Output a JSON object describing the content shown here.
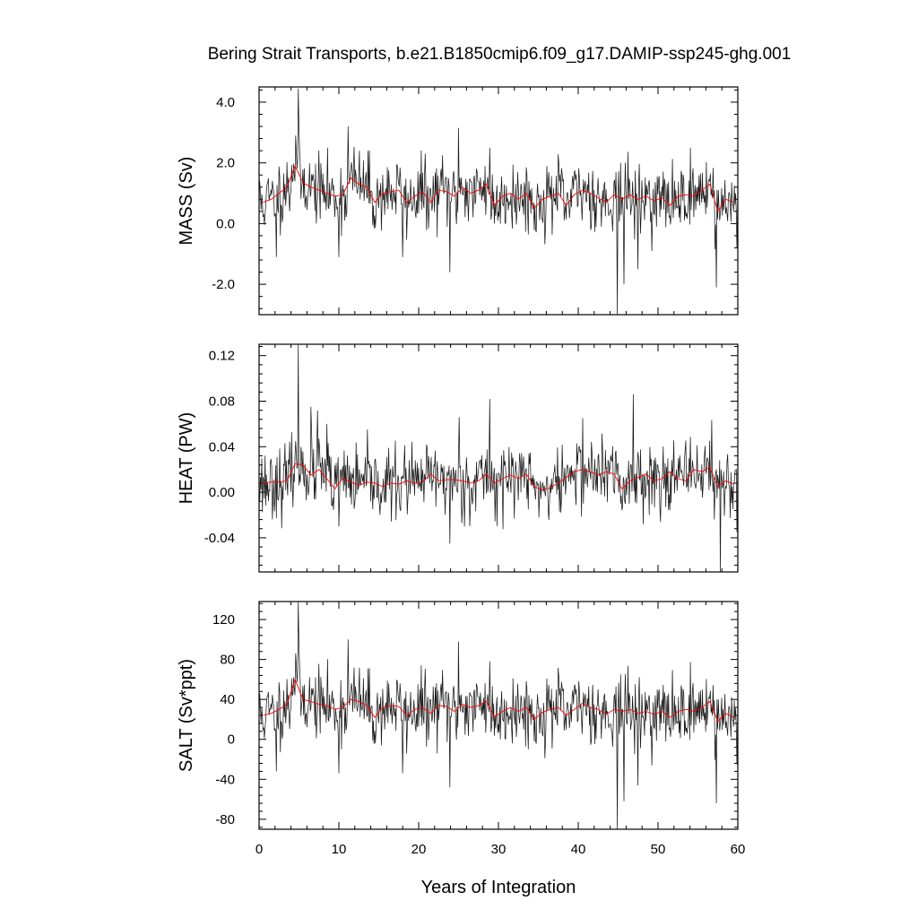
{
  "figure": {
    "title": "Bering Strait Transports, b.e21.B1850cmip6.f09_g17.DAMIP-ssp245-ghg.001",
    "xlabel": "Years of Integration"
  },
  "colors": {
    "monthly_series": "#1a1a1a",
    "running_mean": "#ff0000",
    "axes": "#000000"
  },
  "chart_data": [
    {
      "type": "line",
      "ylabel": "MASS (Sv)",
      "xlim": [
        0,
        60
      ],
      "ylim": [
        -3.0,
        4.5
      ],
      "x_ticks": [
        0,
        10,
        20,
        30,
        40,
        50,
        60
      ],
      "y_ticks": [
        -2.0,
        0.0,
        2.0,
        4.0
      ],
      "y_tick_labels": [
        "-2.0",
        "0.0",
        "2.0",
        "4.0"
      ],
      "grid": false,
      "series": [
        {
          "style": "monthly",
          "x_start": 0,
          "x_step": 0.0833,
          "base_mean": 0.9,
          "noise_sd": 0.55,
          "seed": 11,
          "extremes": [
            [
              4.9,
              4.45
            ],
            [
              5.0,
              3.1
            ],
            [
              4.6,
              2.9
            ],
            [
              11.2,
              3.2
            ],
            [
              25.0,
              3.15
            ],
            [
              28.9,
              2.5
            ],
            [
              2.2,
              -1.1
            ],
            [
              10.0,
              -1.1
            ],
            [
              18.0,
              -1.1
            ],
            [
              23.9,
              -1.6
            ],
            [
              44.9,
              -3.0
            ],
            [
              45.7,
              -2.0
            ],
            [
              47.5,
              -1.5
            ],
            [
              57.3,
              -2.1
            ],
            [
              59.9,
              -0.8
            ]
          ]
        },
        {
          "style": "annual_mean",
          "x": [
            0.5,
            1.5,
            2.5,
            3.5,
            4.5,
            5.5,
            6.5,
            7.5,
            8.5,
            9.5,
            10.5,
            11.5,
            12.5,
            13.5,
            14.5,
            15.5,
            16.5,
            17.5,
            18.5,
            19.5,
            20.5,
            21.5,
            22.5,
            23.5,
            24.5,
            25.5,
            26.5,
            27.5,
            28.5,
            29.5,
            30.5,
            31.5,
            32.5,
            33.5,
            34.5,
            35.5,
            36.5,
            37.5,
            38.5,
            39.5,
            40.5,
            41.5,
            42.5,
            43.5,
            44.5,
            45.5,
            46.5,
            47.5,
            48.5,
            49.5,
            50.5,
            51.5,
            52.5,
            53.5,
            54.5,
            55.5,
            56.5,
            57.5,
            58.5,
            59.5
          ],
          "values": [
            0.7,
            0.8,
            1.0,
            1.2,
            1.9,
            1.35,
            1.2,
            1.1,
            1.0,
            0.9,
            0.95,
            1.5,
            1.3,
            1.2,
            0.7,
            1.0,
            1.05,
            1.1,
            0.7,
            0.9,
            1.05,
            0.7,
            1.1,
            1.05,
            0.9,
            1.2,
            1.0,
            1.1,
            1.3,
            0.6,
            0.9,
            1.0,
            0.8,
            1.0,
            0.5,
            0.8,
            0.9,
            1.0,
            0.6,
            0.95,
            1.1,
            1.0,
            0.85,
            0.7,
            0.95,
            0.8,
            0.95,
            0.8,
            0.9,
            0.75,
            0.85,
            0.6,
            0.9,
            0.95,
            0.9,
            1.1,
            1.3,
            0.4,
            0.8,
            0.7
          ]
        }
      ]
    },
    {
      "type": "line",
      "ylabel": "HEAT (PW)",
      "xlim": [
        0,
        60
      ],
      "ylim": [
        -0.07,
        0.13
      ],
      "x_ticks": [
        0,
        10,
        20,
        30,
        40,
        50,
        60
      ],
      "y_ticks": [
        -0.04,
        0.0,
        0.04,
        0.08,
        0.12
      ],
      "y_tick_labels": [
        "-0.04",
        "0.00",
        "0.04",
        "0.08",
        "0.12"
      ],
      "grid": false,
      "series": [
        {
          "style": "monthly",
          "x_start": 0,
          "x_step": 0.0833,
          "base_mean": 0.009,
          "noise_sd": 0.015,
          "seed": 23,
          "extremes": [
            [
              4.9,
              0.13
            ],
            [
              6.5,
              0.075
            ],
            [
              7.3,
              0.072
            ],
            [
              23.9,
              -0.045
            ],
            [
              28.9,
              0.082
            ],
            [
              46.9,
              0.086
            ],
            [
              40.6,
              0.065
            ],
            [
              57.8,
              -0.07
            ],
            [
              59.9,
              -0.035
            ],
            [
              8.5,
              0.06
            ],
            [
              25.1,
              0.066
            ],
            [
              10.0,
              -0.03
            ]
          ]
        },
        {
          "style": "annual_mean",
          "x": [
            0.5,
            1.5,
            2.5,
            3.5,
            4.5,
            5.5,
            6.5,
            7.5,
            8.5,
            9.5,
            10.5,
            11.5,
            12.5,
            13.5,
            14.5,
            15.5,
            16.5,
            17.5,
            18.5,
            19.5,
            20.5,
            21.5,
            22.5,
            23.5,
            24.5,
            25.5,
            26.5,
            27.5,
            28.5,
            29.5,
            30.5,
            31.5,
            32.5,
            33.5,
            34.5,
            35.5,
            36.5,
            37.5,
            38.5,
            39.5,
            40.5,
            41.5,
            42.5,
            43.5,
            44.5,
            45.5,
            46.5,
            47.5,
            48.5,
            49.5,
            50.5,
            51.5,
            52.5,
            53.5,
            54.5,
            55.5,
            56.5,
            57.5,
            58.5,
            59.5
          ],
          "values": [
            0.008,
            0.009,
            0.009,
            0.01,
            0.025,
            0.024,
            0.015,
            0.02,
            0.012,
            0.003,
            0.012,
            0.009,
            0.006,
            0.009,
            0.008,
            0.005,
            0.008,
            0.007,
            0.01,
            0.008,
            0.009,
            0.016,
            0.01,
            0.011,
            0.011,
            0.01,
            0.008,
            0.01,
            0.016,
            0.008,
            0.012,
            0.015,
            0.012,
            0.016,
            0.005,
            0.002,
            0.004,
            0.008,
            0.013,
            0.018,
            0.02,
            0.018,
            0.015,
            0.018,
            0.016,
            0.003,
            0.01,
            0.013,
            0.016,
            0.01,
            0.012,
            0.018,
            0.012,
            0.01,
            0.02,
            0.018,
            0.022,
            0.005,
            0.01,
            0.007
          ]
        }
      ]
    },
    {
      "type": "line",
      "ylabel": "SALT (Sv*ppt)",
      "xlim": [
        0,
        60
      ],
      "ylim": [
        -90,
        138
      ],
      "x_ticks": [
        0,
        10,
        20,
        30,
        40,
        50,
        60
      ],
      "x_tick_labels": [
        "0",
        "10",
        "20",
        "30",
        "40",
        "50",
        "60"
      ],
      "y_ticks": [
        -80,
        -40,
        0,
        40,
        80,
        120
      ],
      "y_tick_labels": [
        "-80",
        "-40",
        "0",
        "40",
        "80",
        "120"
      ],
      "grid": false,
      "series": [
        {
          "style": "monthly",
          "x_start": 0,
          "x_step": 0.0833,
          "base_mean": 30,
          "noise_sd": 17,
          "seed": 11,
          "extremes": [
            [
              4.9,
              138
            ],
            [
              5.0,
              92
            ],
            [
              4.6,
              86
            ],
            [
              11.2,
              100
            ],
            [
              25.0,
              98
            ],
            [
              28.9,
              78
            ],
            [
              2.2,
              -32
            ],
            [
              10.0,
              -34
            ],
            [
              18.0,
              -34
            ],
            [
              23.9,
              -48
            ],
            [
              44.9,
              -90
            ],
            [
              45.7,
              -62
            ],
            [
              47.5,
              -46
            ],
            [
              57.3,
              -64
            ],
            [
              59.9,
              -25
            ]
          ]
        },
        {
          "style": "annual_mean",
          "x": [
            0.5,
            1.5,
            2.5,
            3.5,
            4.5,
            5.5,
            6.5,
            7.5,
            8.5,
            9.5,
            10.5,
            11.5,
            12.5,
            13.5,
            14.5,
            15.5,
            16.5,
            17.5,
            18.5,
            19.5,
            20.5,
            21.5,
            22.5,
            23.5,
            24.5,
            25.5,
            26.5,
            27.5,
            28.5,
            29.5,
            30.5,
            31.5,
            32.5,
            33.5,
            34.5,
            35.5,
            36.5,
            37.5,
            38.5,
            39.5,
            40.5,
            41.5,
            42.5,
            43.5,
            44.5,
            45.5,
            46.5,
            47.5,
            48.5,
            49.5,
            50.5,
            51.5,
            52.5,
            53.5,
            54.5,
            55.5,
            56.5,
            57.5,
            58.5,
            59.5
          ],
          "values": [
            24,
            26,
            30,
            35,
            60,
            40,
            38,
            35,
            34,
            30,
            32,
            40,
            38,
            34,
            22,
            32,
            34,
            33,
            24,
            30,
            32,
            26,
            34,
            33,
            28,
            35,
            32,
            34,
            38,
            22,
            28,
            32,
            28,
            32,
            20,
            27,
            30,
            32,
            24,
            30,
            36,
            32,
            30,
            25,
            30,
            28,
            30,
            26,
            28,
            25,
            28,
            22,
            28,
            30,
            28,
            32,
            38,
            18,
            26,
            22
          ]
        }
      ]
    }
  ]
}
